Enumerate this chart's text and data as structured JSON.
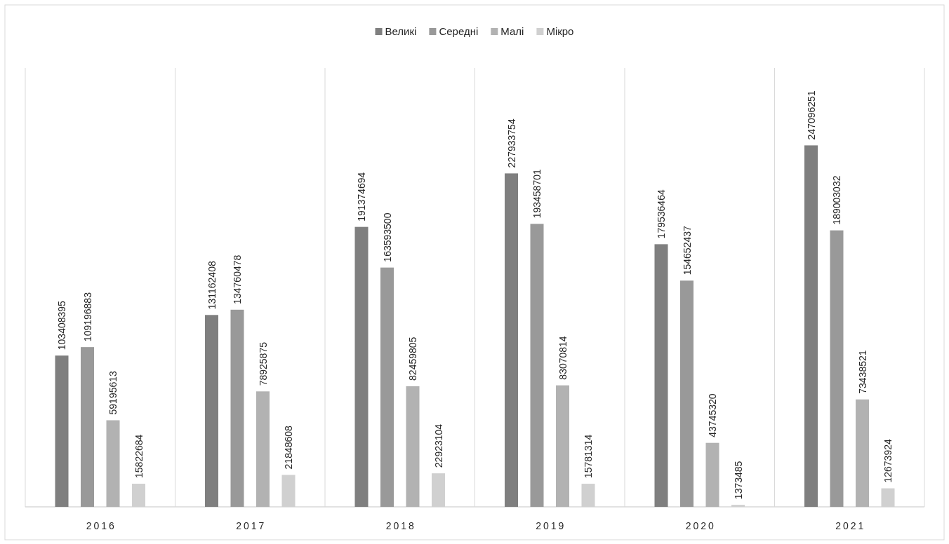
{
  "chart_data": {
    "type": "bar",
    "categories": [
      "2016",
      "2017",
      "2018",
      "2019",
      "2020",
      "2021"
    ],
    "series": [
      {
        "name": "Великі",
        "color": "#7f7f7f",
        "values": [
          103408395,
          131162408,
          191374694,
          227933754,
          179536464,
          247096251
        ]
      },
      {
        "name": "Середні",
        "color": "#999999",
        "values": [
          109196883,
          134760478,
          163593500,
          193458701,
          154652437,
          189003032
        ]
      },
      {
        "name": "Малі",
        "color": "#b2b2b2",
        "values": [
          59195613,
          78925875,
          82459805,
          83070814,
          43745320,
          73438521
        ]
      },
      {
        "name": "Мікро",
        "color": "#d0d0d0",
        "values": [
          15822684,
          21848608,
          22923104,
          15781314,
          1373485,
          12673924
        ]
      }
    ],
    "ylim": [
      0,
      300000000
    ],
    "tick_labels": "x",
    "grid": "x",
    "legend": "top",
    "data_labels": true
  }
}
